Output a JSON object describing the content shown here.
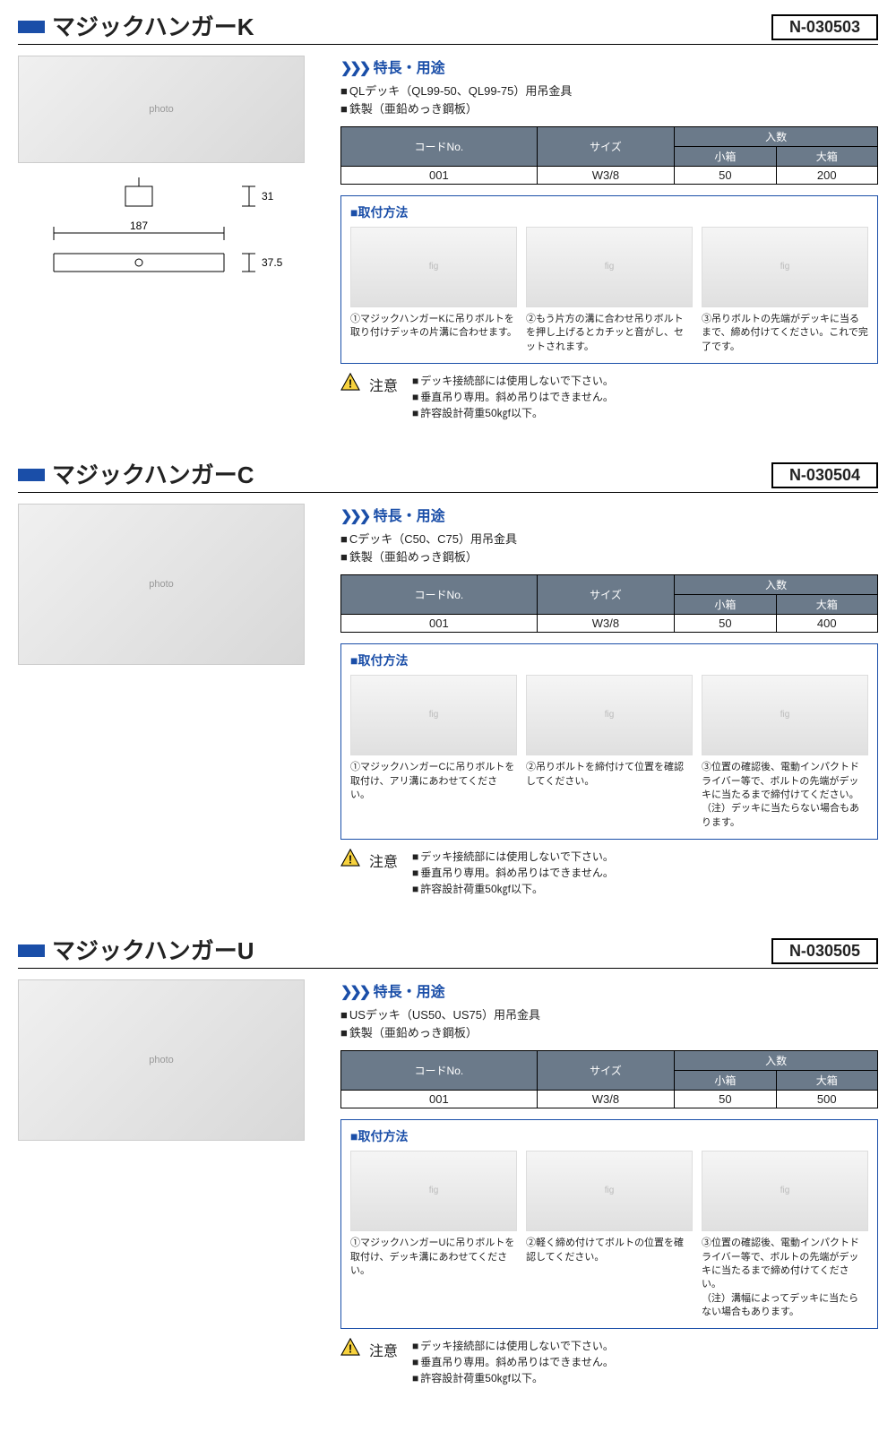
{
  "products": [
    {
      "title": "マジックハンガーK",
      "code": "N-030503",
      "features_header": "特長・用途",
      "features": [
        "QLデッキ（QL99-50、QL99-75）用吊金具",
        "鉄製（亜鉛めっき鋼板）"
      ],
      "table": {
        "headers": {
          "code": "コードNo.",
          "size": "サイズ",
          "qty": "入数",
          "small": "小箱",
          "large": "大箱"
        },
        "row": {
          "code": "001",
          "size": "W3/8",
          "small": "50",
          "large": "200"
        }
      },
      "method_title": "■取付方法",
      "steps": [
        "①マジックハンガーKに吊りボルトを取り付けデッキの片溝に合わせます。",
        "②もう片方の溝に合わせ吊りボルトを押し上げるとカチッと音がし、セットされます。",
        "③吊りボルトの先端がデッキに当るまで、締め付けてください。これで完了です。"
      ],
      "attention_label": "注意",
      "attention": [
        "デッキ接続部には使用しないで下さい。",
        "垂直吊り専用。斜め吊りはできません。",
        "許容設計荷重50㎏f以下。"
      ],
      "dims": {
        "w": "187",
        "h1": "31",
        "h2": "37.5"
      }
    },
    {
      "title": "マジックハンガーC",
      "code": "N-030504",
      "features_header": "特長・用途",
      "features": [
        "Cデッキ（C50、C75）用吊金具",
        "鉄製（亜鉛めっき鋼板）"
      ],
      "table": {
        "headers": {
          "code": "コードNo.",
          "size": "サイズ",
          "qty": "入数",
          "small": "小箱",
          "large": "大箱"
        },
        "row": {
          "code": "001",
          "size": "W3/8",
          "small": "50",
          "large": "400"
        }
      },
      "method_title": "■取付方法",
      "steps": [
        "①マジックハンガーCに吊りボルトを取付け、アリ溝にあわせてください。",
        "②吊りボルトを締付けて位置を確認してください。",
        "③位置の確認後、電動インパクトドライバー等で、ボルトの先端がデッキに当たるまで締付けてください。\n（注）デッキに当たらない場合もあります。"
      ],
      "attention_label": "注意",
      "attention": [
        "デッキ接続部には使用しないで下さい。",
        "垂直吊り専用。斜め吊りはできません。",
        "許容設計荷重50㎏f以下。"
      ]
    },
    {
      "title": "マジックハンガーU",
      "code": "N-030505",
      "features_header": "特長・用途",
      "features": [
        "USデッキ（US50、US75）用吊金具",
        "鉄製（亜鉛めっき鋼板）"
      ],
      "table": {
        "headers": {
          "code": "コードNo.",
          "size": "サイズ",
          "qty": "入数",
          "small": "小箱",
          "large": "大箱"
        },
        "row": {
          "code": "001",
          "size": "W3/8",
          "small": "50",
          "large": "500"
        }
      },
      "method_title": "■取付方法",
      "steps": [
        "①マジックハンガーUに吊りボルトを取付け、デッキ溝にあわせてください。",
        "②軽く締め付けてボルトの位置を確認してください。",
        "③位置の確認後、電動インパクトドライバー等で、ボルトの先端がデッキに当たるまで締め付けてください。\n（注）溝幅によってデッキに当たらない場合もあります。"
      ],
      "attention_label": "注意",
      "attention": [
        "デッキ接続部には使用しないで下さい。",
        "垂直吊り専用。斜め吊りはできません。",
        "許容設計荷重50㎏f以下。"
      ]
    }
  ],
  "colors": {
    "accent": "#1a4ea8",
    "table_header_bg": "#6b7a8a",
    "warn_fill": "#f7d23e",
    "warn_stroke": "#000000"
  }
}
